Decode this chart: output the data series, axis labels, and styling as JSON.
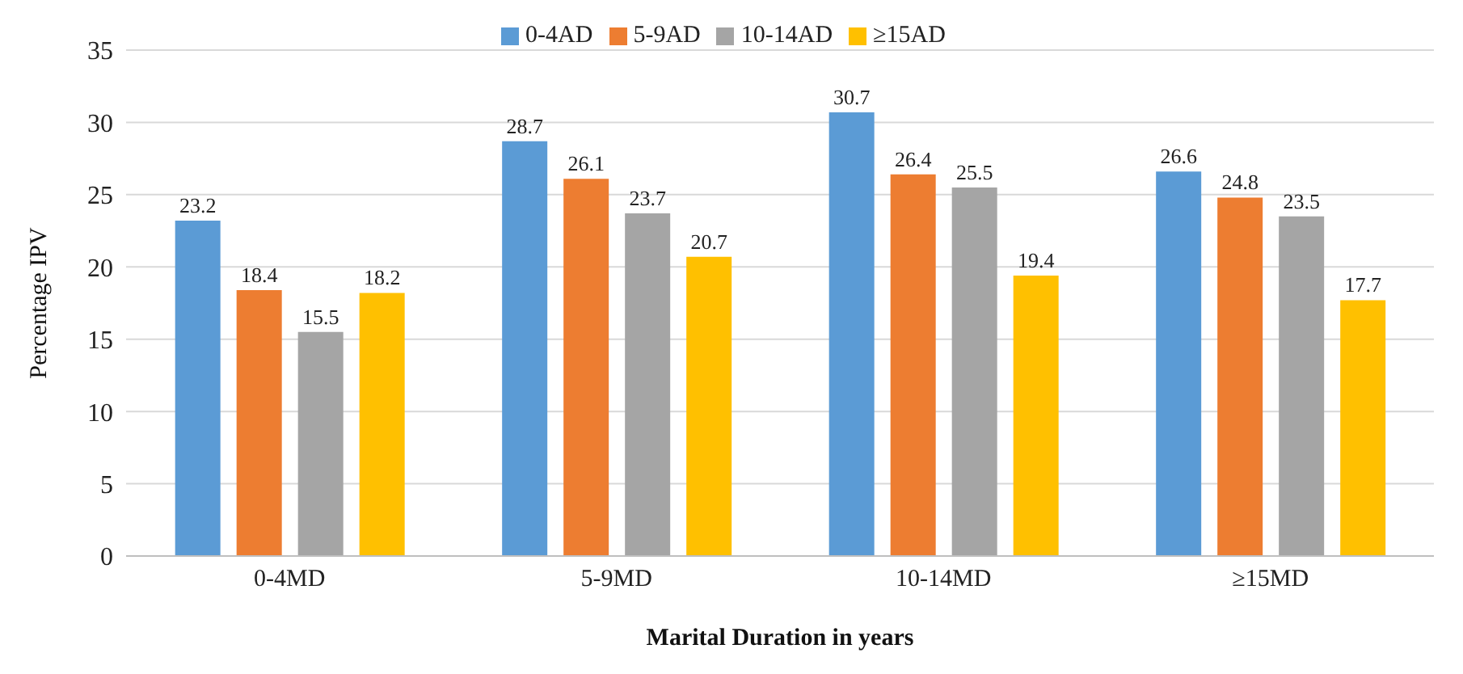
{
  "chart_data": {
    "type": "bar",
    "xlabel": "Marital Duration in years",
    "ylabel": "Percentage IPV",
    "categories": [
      "0-4MD",
      "5-9MD",
      "10-14MD",
      "≥15MD"
    ],
    "series": [
      {
        "name": "0-4AD",
        "color": "#5b9bd5",
        "values": [
          23.2,
          28.7,
          30.7,
          26.6
        ]
      },
      {
        "name": "5-9AD",
        "color": "#ed7d31",
        "values": [
          18.4,
          26.1,
          26.4,
          24.8
        ]
      },
      {
        "name": "10-14AD",
        "color": "#a5a5a5",
        "values": [
          15.5,
          23.7,
          25.5,
          23.5
        ]
      },
      {
        "name": "≥15AD",
        "color": "#ffc000",
        "values": [
          18.2,
          20.7,
          19.4,
          17.7
        ]
      }
    ],
    "ylim": [
      0,
      35
    ],
    "yticks": [
      0,
      5,
      10,
      15,
      20,
      25,
      30,
      35
    ],
    "grid": "y",
    "legend": "top",
    "data_labels": true
  }
}
